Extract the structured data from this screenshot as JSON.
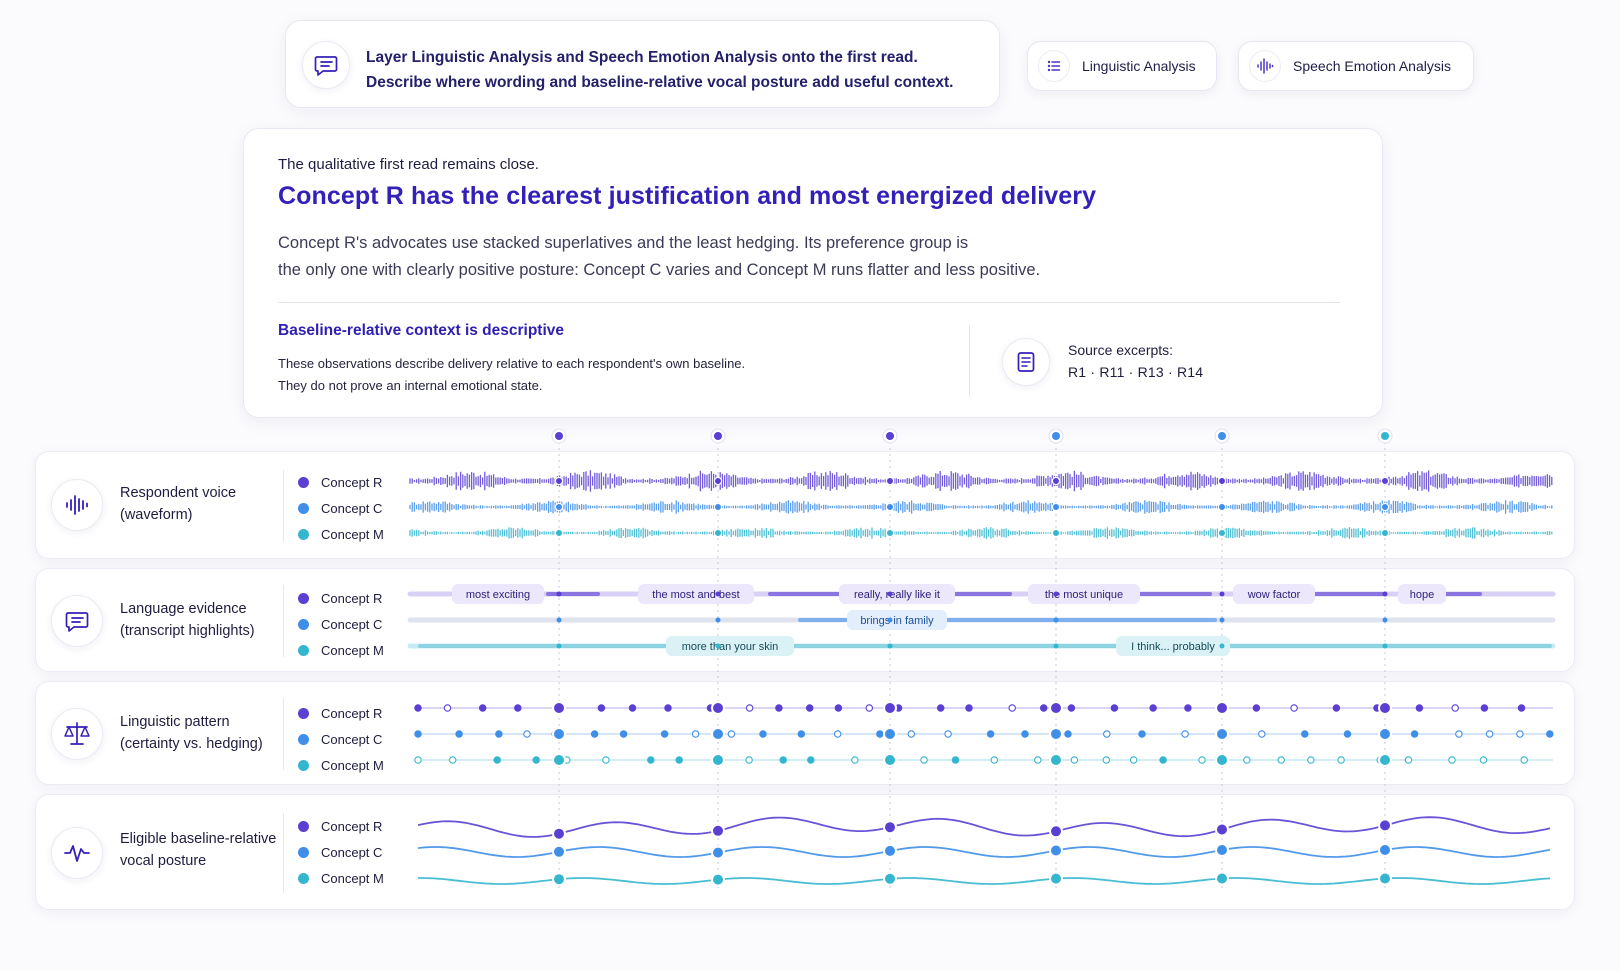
{
  "prompt": {
    "line1": "Layer Linguistic Analysis and Speech Emotion Analysis onto the first read.",
    "line2": "Describe where wording and baseline-relative vocal posture add useful context.",
    "icon": "chat-bubble-icon"
  },
  "toolbar": {
    "linguistic_label": "Linguistic Analysis",
    "linguistic_icon": "list-icon",
    "speech_label": "Speech Emotion Analysis",
    "speech_icon": "waveform-icon"
  },
  "summary": {
    "kicker": "The qualitative first read remains close.",
    "headline": "Concept R has the clearest justification and most energized delivery",
    "body_line1": "Concept R's advocates use stacked superlatives and the least hedging. Its preference group is",
    "body_line2": "the only one with clearly positive posture: Concept C varies and Concept M runs flatter and less positive.",
    "context_title": "Baseline-relative context is descriptive",
    "context_line1": "These observations describe delivery relative to each respondent's own baseline.",
    "context_line2": "They do not prove an internal emotional state.",
    "source_label": "Source excerpts:",
    "source_refs": "R1 · R11 · R13 · R14",
    "source_icon": "document-icon"
  },
  "colors": {
    "concept_r": "#5b3fd3",
    "concept_c": "#3f8ee8",
    "concept_m": "#35b6cf",
    "accent": "#3320b8",
    "text": "#1f1d3f"
  },
  "rows": [
    {
      "title_line1": "Respondent voice",
      "title_line2": "(waveform)",
      "icon": "waveform-icon",
      "legend": [
        "Concept R",
        "Concept C",
        "Concept M"
      ]
    },
    {
      "title_line1": "Language evidence",
      "title_line2": "(transcript highlights)",
      "icon": "chat-bubble-icon",
      "legend": [
        "Concept R",
        "Concept C",
        "Concept M"
      ]
    },
    {
      "title_line1": "Linguistic pattern",
      "title_line2": "(certainty vs. hedging)",
      "icon": "scales-icon",
      "legend": [
        "Concept R",
        "Concept C",
        "Concept M"
      ]
    },
    {
      "title_line1": "Eligible baseline-relative",
      "title_line2": "vocal posture",
      "icon": "pulse-icon",
      "legend": [
        "Concept R",
        "Concept C",
        "Concept M"
      ]
    }
  ],
  "highlights": {
    "concept_r": [
      "most exciting",
      "the most and best",
      "really, really like it",
      "the most unique",
      "wow factor",
      "hope"
    ],
    "concept_c": [
      "brings in family"
    ],
    "concept_m": [
      "more than your skin",
      "I think... probably"
    ]
  }
}
